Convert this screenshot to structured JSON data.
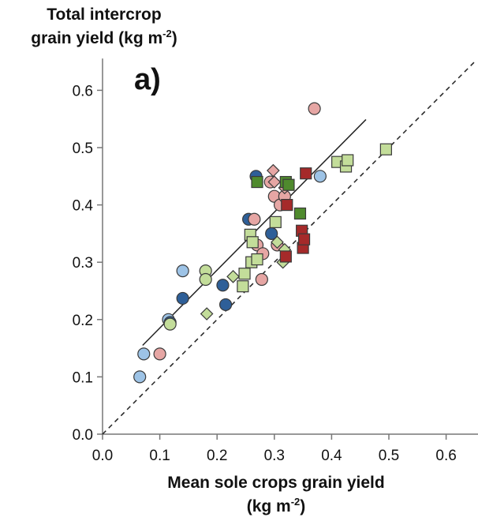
{
  "chart_data": {
    "type": "scatter",
    "panel_label": "a)",
    "ylabel": {
      "line1": "Total intercrop",
      "line2_main": "grain yield (kg m",
      "sup": "-2",
      "close": ")"
    },
    "xlabel": {
      "line1": "Mean sole crops grain yield",
      "line2_main": "(kg m",
      "sup": "-2",
      "close": ")"
    },
    "xlim": [
      0,
      0.65
    ],
    "ylim": [
      0,
      0.65
    ],
    "xticks": [
      "0.0",
      "0.1",
      "0.2",
      "0.3",
      "0.4",
      "0.5",
      "0.6"
    ],
    "yticks": [
      "0.0",
      "0.1",
      "0.2",
      "0.3",
      "0.4",
      "0.5",
      "0.6"
    ],
    "grid": false,
    "reference_line": {
      "style": "dashed",
      "from": [
        0,
        0
      ],
      "to": [
        0.65,
        0.65
      ]
    },
    "fit_line": {
      "style": "solid",
      "from": [
        0.07,
        0.155
      ],
      "to": [
        0.46,
        0.549
      ]
    },
    "colors": {
      "light_blue": "#9dc3e6",
      "dark_blue": "#2e5f98",
      "pink": "#e6a6a4",
      "dark_red": "#a52a2a",
      "light_green": "#c3dd9a",
      "dark_green": "#4f8a2d",
      "outline": "#3a3a3a"
    },
    "series": [
      {
        "marker": "circle",
        "color": "light_blue",
        "points": [
          [
            0.065,
            0.1
          ],
          [
            0.072,
            0.14
          ],
          [
            0.115,
            0.2
          ],
          [
            0.14,
            0.285
          ],
          [
            0.38,
            0.45
          ]
        ]
      },
      {
        "marker": "circle",
        "color": "dark_blue",
        "points": [
          [
            0.118,
            0.195
          ],
          [
            0.14,
            0.237
          ],
          [
            0.21,
            0.26
          ],
          [
            0.215,
            0.226
          ],
          [
            0.255,
            0.375
          ],
          [
            0.268,
            0.45
          ],
          [
            0.295,
            0.35
          ]
        ]
      },
      {
        "marker": "circle",
        "color": "light_green",
        "points": [
          [
            0.118,
            0.192
          ],
          [
            0.18,
            0.285
          ],
          [
            0.18,
            0.27
          ]
        ]
      },
      {
        "marker": "circle",
        "color": "pink",
        "points": [
          [
            0.1,
            0.14
          ],
          [
            0.265,
            0.375
          ],
          [
            0.27,
            0.33
          ],
          [
            0.278,
            0.27
          ],
          [
            0.28,
            0.315
          ],
          [
            0.293,
            0.44
          ],
          [
            0.3,
            0.415
          ],
          [
            0.305,
            0.33
          ],
          [
            0.31,
            0.4
          ],
          [
            0.318,
            0.415
          ],
          [
            0.37,
            0.568
          ]
        ]
      },
      {
        "marker": "diamond",
        "color": "pink",
        "points": [
          [
            0.298,
            0.46
          ],
          [
            0.3,
            0.44
          ],
          [
            0.318,
            0.43
          ]
        ]
      },
      {
        "marker": "diamond",
        "color": "light_green",
        "points": [
          [
            0.182,
            0.21
          ],
          [
            0.228,
            0.275
          ],
          [
            0.305,
            0.335
          ],
          [
            0.315,
            0.3
          ],
          [
            0.318,
            0.322
          ]
        ]
      },
      {
        "marker": "square",
        "color": "light_green",
        "points": [
          [
            0.245,
            0.258
          ],
          [
            0.248,
            0.28
          ],
          [
            0.258,
            0.348
          ],
          [
            0.26,
            0.3
          ],
          [
            0.262,
            0.335
          ],
          [
            0.27,
            0.305
          ],
          [
            0.302,
            0.37
          ],
          [
            0.41,
            0.475
          ],
          [
            0.425,
            0.467
          ],
          [
            0.428,
            0.478
          ],
          [
            0.495,
            0.497
          ]
        ]
      },
      {
        "marker": "square",
        "color": "dark_green",
        "points": [
          [
            0.27,
            0.44
          ],
          [
            0.32,
            0.44
          ],
          [
            0.325,
            0.435
          ],
          [
            0.345,
            0.385
          ]
        ]
      },
      {
        "marker": "square",
        "color": "dark_red",
        "points": [
          [
            0.32,
            0.31
          ],
          [
            0.322,
            0.4
          ],
          [
            0.348,
            0.355
          ],
          [
            0.35,
            0.325
          ],
          [
            0.352,
            0.34
          ],
          [
            0.355,
            0.455
          ]
        ]
      }
    ]
  }
}
